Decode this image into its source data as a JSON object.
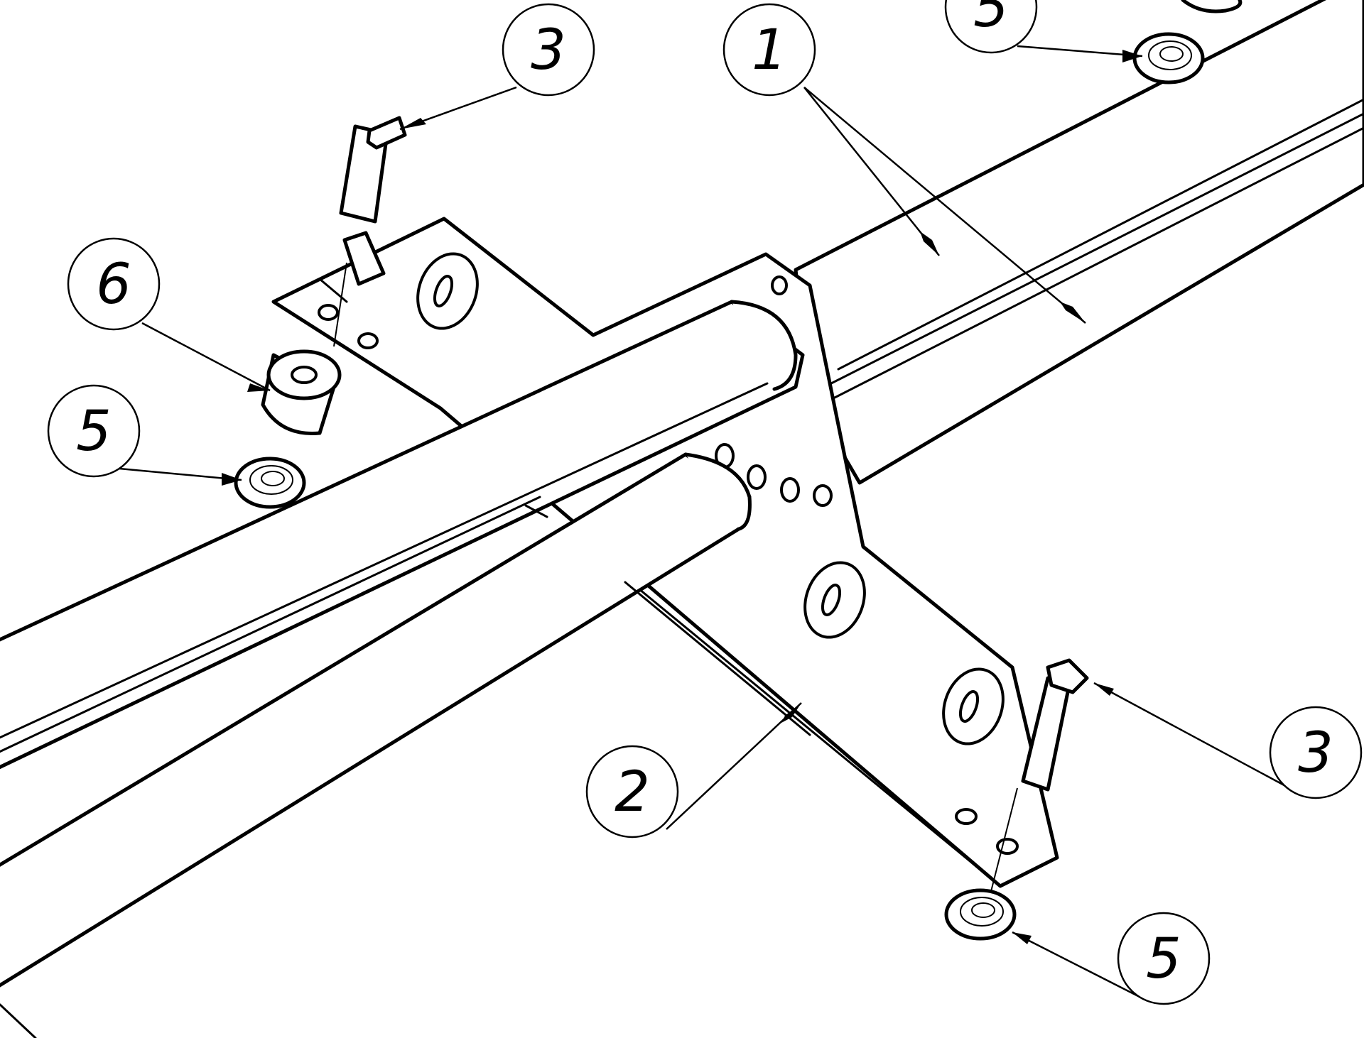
{
  "callouts": [
    {
      "id": "callout-1",
      "label": "1"
    },
    {
      "id": "callout-2",
      "label": "2"
    },
    {
      "id": "callout-3-top",
      "label": "3"
    },
    {
      "id": "callout-3-right",
      "label": "3"
    },
    {
      "id": "callout-5-top",
      "label": "5"
    },
    {
      "id": "callout-5-left",
      "label": "5"
    },
    {
      "id": "callout-5-bottom",
      "label": "5"
    },
    {
      "id": "callout-6",
      "label": "6"
    }
  ]
}
